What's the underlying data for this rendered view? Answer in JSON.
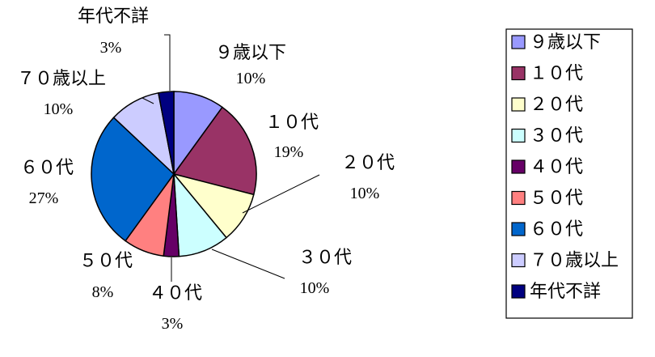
{
  "chart_data": {
    "type": "pie",
    "title": "",
    "legend_position": "right",
    "categories": [
      "９歳以下",
      "１０代",
      "２０代",
      "３０代",
      "４０代",
      "５０代",
      "６０代",
      "７０歳以上",
      "年代不詳"
    ],
    "values": [
      10,
      19,
      10,
      10,
      3,
      8,
      27,
      10,
      3
    ],
    "value_labels": [
      "10%",
      "19%",
      "10%",
      "10%",
      "3%",
      "8%",
      "27%",
      "10%",
      "3%"
    ],
    "colors": [
      "#9999ff",
      "#993366",
      "#ffffcc",
      "#ccffff",
      "#660066",
      "#ff8080",
      "#0066cc",
      "#ccccff",
      "#000080"
    ]
  }
}
